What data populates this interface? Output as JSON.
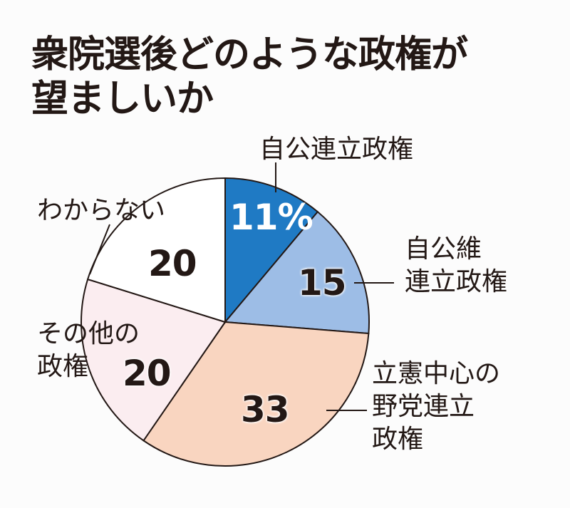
{
  "title": {
    "line1": "衆院選後どのような政権が",
    "line2": "望ましいか"
  },
  "colors": {
    "jikou": "#1f7ac4",
    "jikouishin": "#9dbde6",
    "rikken": "#f9d5c0",
    "other": "#fbedf0",
    "unknown": "#ffffff",
    "stroke": "#231815"
  },
  "labels": {
    "jikou": "自公連立政権",
    "jikouishin_l1": "自公維",
    "jikouishin_l2": "連立政権",
    "rikken_l1": "立憲中心の",
    "rikken_l2": "野党連立",
    "rikken_l3": "政権",
    "other_l1": "その他の",
    "other_l2": "政権",
    "unknown": "わからない"
  },
  "values": {
    "jikou": "11%",
    "jikouishin": "15",
    "rikken": "33",
    "other": "20",
    "unknown": "20"
  },
  "chart_data": {
    "type": "pie",
    "title": "衆院選後どのような政権が望ましいか",
    "unit": "%",
    "start_angle": "12 o'clock, clockwise",
    "categories": [
      "自公連立政権",
      "自公維連立政権",
      "立憲中心の野党連立政権",
      "その他の政権",
      "わからない"
    ],
    "values": [
      11,
      15,
      33,
      20,
      20
    ],
    "colors": [
      "#1f7ac4",
      "#9dbde6",
      "#f9d5c0",
      "#fbedf0",
      "#ffffff"
    ],
    "legend": "none (direct labels with leader lines)"
  }
}
